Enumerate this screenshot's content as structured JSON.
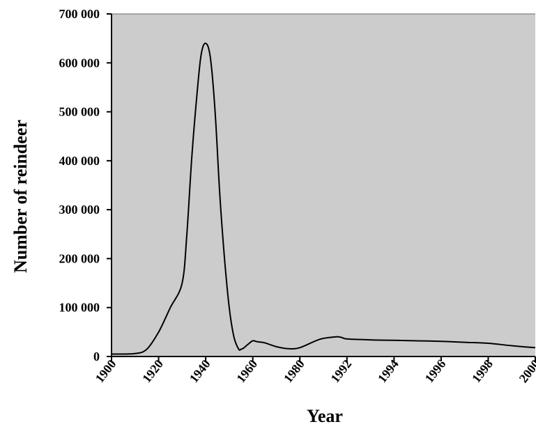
{
  "chart_data": {
    "type": "line",
    "title": "",
    "xlabel": "Year",
    "ylabel": "Number of reindeer",
    "ylim": [
      0,
      700000
    ],
    "x_tick_labels": [
      "1900",
      "1920",
      "1940",
      "1960",
      "1980",
      "1992",
      "1994",
      "1996",
      "1998",
      "2000"
    ],
    "y_tick_labels": [
      "0",
      "100 000",
      "200 000",
      "300 000",
      "400 000",
      "500 000",
      "600 000",
      "700 000"
    ],
    "y_tick_values": [
      0,
      100000,
      200000,
      300000,
      400000,
      500000,
      600000,
      700000
    ],
    "grid": false,
    "background_color": "#cccccc",
    "line_color": "#000000",
    "series": [
      {
        "x": [
          1900,
          1910,
          1915,
          1920,
          1925,
          1930,
          1932,
          1934,
          1936,
          1938,
          1940,
          1942,
          1944,
          1946,
          1948,
          1950,
          1952,
          1954,
          1955,
          1956,
          1958,
          1960,
          1962,
          1965,
          1970,
          1975,
          1980,
          1985,
          1989,
          1990,
          1991,
          1992,
          1993,
          1994,
          1995,
          1996,
          1997,
          1998,
          1999,
          2000
        ],
        "values": [
          5000,
          6000,
          15000,
          50000,
          100000,
          150000,
          250000,
          400000,
          520000,
          615000,
          640000,
          610000,
          500000,
          330000,
          200000,
          100000,
          40000,
          15000,
          15000,
          17000,
          25000,
          32000,
          30000,
          28000,
          20000,
          16000,
          18000,
          35000,
          40000,
          40000,
          38000,
          36000,
          34000,
          33000,
          32000,
          31000,
          29000,
          27000,
          22000,
          18000
        ]
      }
    ]
  }
}
